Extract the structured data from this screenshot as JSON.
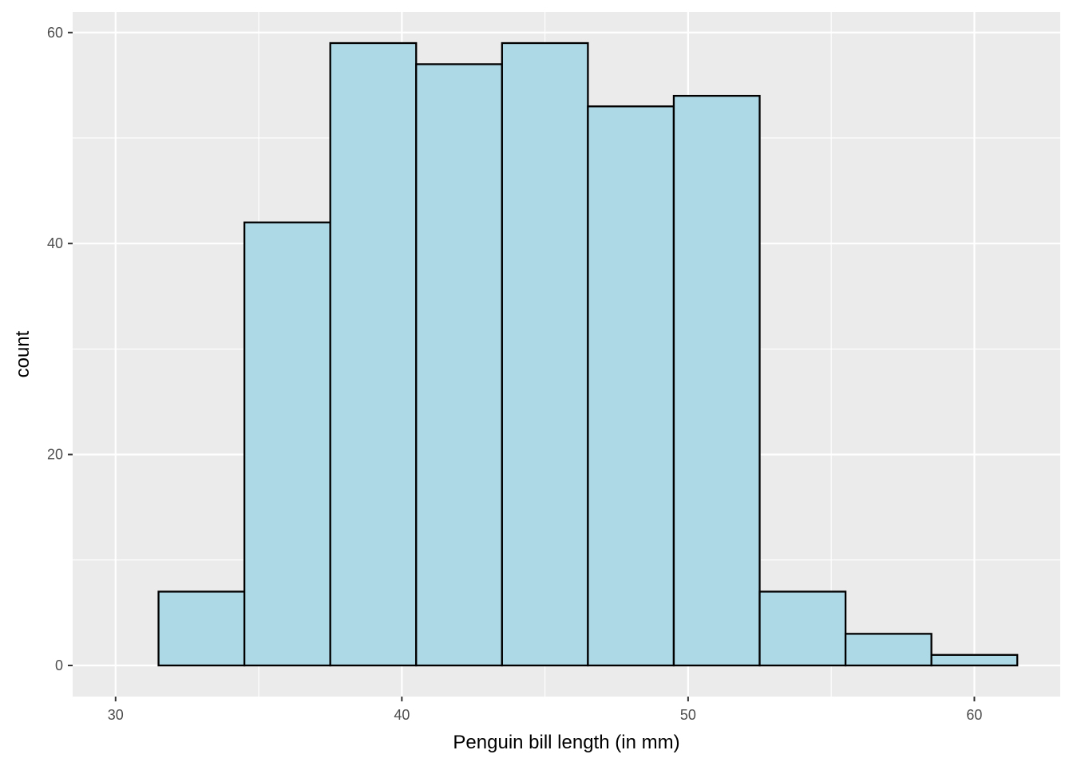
{
  "chart_data": {
    "type": "bar",
    "title": "",
    "xlabel": "Penguin bill length (in mm)",
    "ylabel": "count",
    "xlim": [
      28.5,
      63.0
    ],
    "ylim": [
      -2.95,
      61.95
    ],
    "x_ticks": [
      30,
      40,
      50,
      60
    ],
    "y_ticks": [
      0,
      20,
      40,
      60
    ],
    "x_tick_labels": [
      "30",
      "40",
      "50",
      "60"
    ],
    "y_tick_labels": [
      "0",
      "20",
      "40",
      "60"
    ],
    "x_minor_grid": [
      35,
      45,
      55
    ],
    "y_minor_grid": [
      10,
      30,
      50
    ],
    "bins": [
      {
        "x_start": 31.5,
        "x_end": 34.5,
        "count": 7
      },
      {
        "x_start": 34.5,
        "x_end": 37.5,
        "count": 42
      },
      {
        "x_start": 37.5,
        "x_end": 40.5,
        "count": 59
      },
      {
        "x_start": 40.5,
        "x_end": 43.5,
        "count": 57
      },
      {
        "x_start": 43.5,
        "x_end": 46.5,
        "count": 59
      },
      {
        "x_start": 46.5,
        "x_end": 49.5,
        "count": 53
      },
      {
        "x_start": 49.5,
        "x_end": 52.5,
        "count": 54
      },
      {
        "x_start": 52.5,
        "x_end": 55.5,
        "count": 7
      },
      {
        "x_start": 55.5,
        "x_end": 58.5,
        "count": 3
      },
      {
        "x_start": 58.5,
        "x_end": 61.5,
        "count": 1
      }
    ],
    "grid": true,
    "legend": "none",
    "colors": {
      "panel_background": "#EBEBEB",
      "grid_line": "#FFFFFF",
      "bar_fill": "#ADD8E6",
      "bar_outline": "#000000",
      "tick_mark": "#333333"
    }
  }
}
